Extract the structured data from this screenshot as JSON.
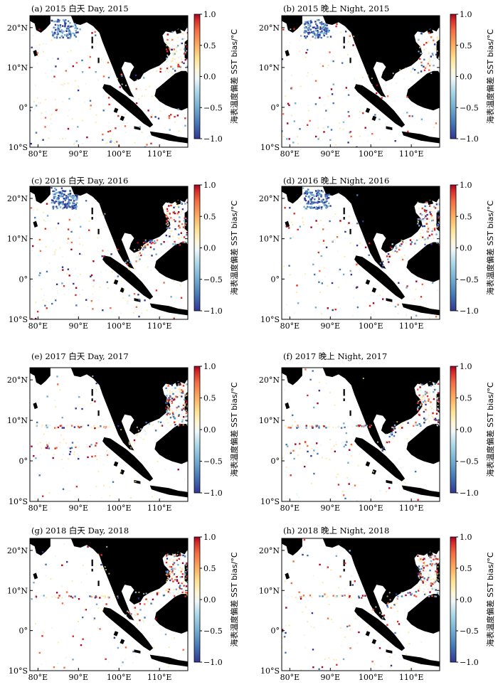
{
  "chart_data": [
    {
      "id": "a",
      "type": "scatter",
      "title": "(a) 2015 白天 Day, 2015",
      "xlabels": [
        "80°E",
        "90°E",
        "100°E",
        "110°E"
      ],
      "ylabels": [
        "20°N",
        "10°N",
        "0°",
        "10°S"
      ],
      "xlim": [
        78,
        117
      ],
      "ylim": [
        -10,
        23
      ],
      "colorbar": {
        "label": "海表温度偏差 SST bias/°C",
        "ticks": [
          "1.0",
          "0.5",
          "0.0",
          "−0.5",
          "−1.0"
        ],
        "range": [
          -1,
          1
        ]
      },
      "seed": 11,
      "density": 1.0,
      "regions": [
        "bob",
        "scs",
        "bias_neg_bob"
      ]
    },
    {
      "id": "b",
      "type": "scatter",
      "title": "(b) 2015 晚上 Night, 2015",
      "xlabels": [
        "80°E",
        "90°E",
        "100°E",
        "110°E"
      ],
      "ylabels": [
        "20°N",
        "10°N",
        "0°",
        "10°S"
      ],
      "xlim": [
        78,
        117
      ],
      "ylim": [
        -10,
        23
      ],
      "colorbar": {
        "label": "海表温度偏差 SST bias/°C",
        "ticks": [
          "1.0",
          "0.5",
          "0.0",
          "−0.5",
          "−1.0"
        ],
        "range": [
          -1,
          1
        ]
      },
      "seed": 23,
      "density": 1.0,
      "regions": [
        "bob",
        "scs",
        "bias_neg_bob"
      ]
    },
    {
      "id": "c",
      "type": "scatter",
      "title": "(c) 2016 白天 Day, 2016",
      "xlabels": [
        "80°E",
        "90°E",
        "100°E",
        "110°E"
      ],
      "ylabels": [
        "20°N",
        "10°N",
        "0°",
        "10°S"
      ],
      "xlim": [
        78,
        117
      ],
      "ylim": [
        -10,
        23
      ],
      "colorbar": {
        "label": "海表温度偏差 SST bias/°C",
        "ticks": [
          "1.0",
          "0.5",
          "0.0",
          "−0.5",
          "−1.0"
        ],
        "range": [
          -1,
          1
        ]
      },
      "seed": 37,
      "density": 1.3,
      "regions": [
        "bob",
        "scs",
        "bias_neg_bob",
        "diag"
      ]
    },
    {
      "id": "d",
      "type": "scatter",
      "title": "(d) 2016 晚上 Night, 2016",
      "xlabels": [
        "80°E",
        "90°E",
        "100°E",
        "110°E"
      ],
      "ylabels": [
        "20°N",
        "10°N",
        "0°",
        "10°S"
      ],
      "xlim": [
        78,
        117
      ],
      "ylim": [
        -10,
        23
      ],
      "colorbar": {
        "label": "海表温度偏差 SST bias/°C",
        "ticks": [
          "1.0",
          "0.5",
          "0.0",
          "−0.5",
          "−1.0"
        ],
        "range": [
          -1,
          1
        ]
      },
      "seed": 41,
      "density": 1.2,
      "regions": [
        "bob",
        "scs",
        "bias_neg_bob",
        "diag"
      ]
    },
    {
      "id": "e",
      "type": "scatter",
      "title": "(e) 2017 白天 Day, 2017",
      "xlabels": [
        "80°E",
        "90°E",
        "100°E",
        "110°E"
      ],
      "ylabels": [
        "20°N",
        "10°N",
        "0°",
        "10°S"
      ],
      "xlim": [
        78,
        117
      ],
      "ylim": [
        -10,
        23
      ],
      "colorbar": {
        "label": "海表温度偏差 SST bias/°C",
        "ticks": [
          "1.0",
          "0.5",
          "0.0",
          "−0.5",
          "−1.0"
        ],
        "range": [
          -1,
          1
        ]
      },
      "seed": 53,
      "density": 1.1,
      "regions": [
        "scs",
        "eq",
        "line5",
        "diag"
      ]
    },
    {
      "id": "f",
      "type": "scatter",
      "title": "(f) 2017 晚上 Night, 2017",
      "xlabels": [
        "80°E",
        "90°E",
        "100°E",
        "110°E"
      ],
      "ylabels": [
        "20°N",
        "10°N",
        "0°",
        "10°S"
      ],
      "xlim": [
        78,
        117
      ],
      "ylim": [
        -10,
        23
      ],
      "colorbar": {
        "label": "海表温度偏差 SST bias/°C",
        "ticks": [
          "1.0",
          "0.5",
          "0.0",
          "−0.5",
          "−1.0"
        ],
        "range": [
          -1,
          1
        ]
      },
      "seed": 67,
      "density": 1.0,
      "regions": [
        "scs",
        "eq",
        "line5",
        "diag"
      ]
    },
    {
      "id": "g",
      "type": "scatter",
      "title": "(g) 2018 白天 Day, 2018",
      "xlabels": [
        "80°E",
        "90°E",
        "100°E",
        "110°E"
      ],
      "ylabels": [
        "20°N",
        "10°N",
        "0°",
        "10°S"
      ],
      "xlim": [
        78,
        117
      ],
      "ylim": [
        -10,
        23
      ],
      "colorbar": {
        "label": "海表温度偏差 SST bias/°C",
        "ticks": [
          "1.0",
          "0.5",
          "0.0",
          "−0.5",
          "−1.0"
        ],
        "range": [
          -1,
          1
        ]
      },
      "seed": 71,
      "density": 0.9,
      "regions": [
        "scs",
        "line5",
        "diag"
      ]
    },
    {
      "id": "h",
      "type": "scatter",
      "title": "(h) 2018 晚上 Night, 2018",
      "xlabels": [
        "80°E",
        "90°E",
        "100°E",
        "110°E"
      ],
      "ylabels": [
        "20°N",
        "10°N",
        "0°",
        "10°S"
      ],
      "xlim": [
        78,
        117
      ],
      "ylim": [
        -10,
        23
      ],
      "colorbar": {
        "label": "海表温度偏差 SST bias/°C",
        "ticks": [
          "1.0",
          "0.5",
          "0.0",
          "−0.5",
          "−1.0"
        ],
        "range": [
          -1,
          1
        ]
      },
      "seed": 83,
      "density": 0.9,
      "regions": [
        "scs",
        "line5",
        "diag"
      ]
    }
  ],
  "colors": {
    "land": "#000000",
    "scale": [
      "#313695",
      "#4575b4",
      "#74add1",
      "#abd9e9",
      "#e0f3f8",
      "#fee090",
      "#fdae61",
      "#f46d43",
      "#d73027",
      "#a50026"
    ]
  }
}
